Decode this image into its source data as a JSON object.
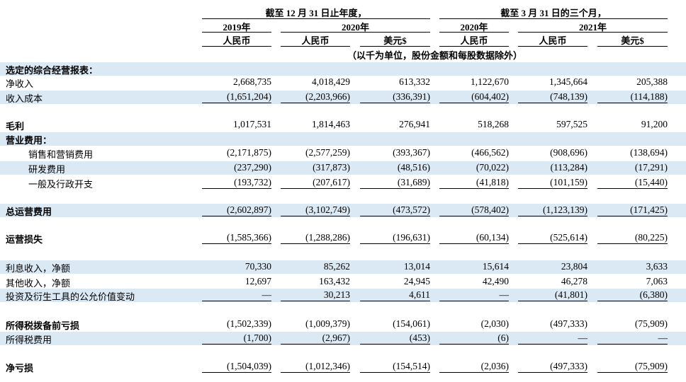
{
  "header": {
    "group1_title": "截至 12 月 31 日止年度，",
    "group2_title": "截至 3 月 31 日的三个月，",
    "years": [
      "2019年",
      "2020年",
      "2020年",
      "2021年"
    ],
    "currencies": [
      "人民币",
      "人民币",
      "美元$",
      "人民币",
      "人民币",
      "美元$"
    ],
    "unit_note": "（以千为单位，股份金额和每股数据除外）"
  },
  "rows": [
    {
      "label": "选定的综合经营报表：",
      "values": [
        "",
        "",
        "",
        "",
        "",
        ""
      ]
    },
    {
      "label": "净收入",
      "values": [
        "2,668,735",
        "4,018,429",
        "613,332",
        "1,122,670",
        "1,345,664",
        "205,388"
      ]
    },
    {
      "label": "收入成本",
      "values": [
        "(1,651,204)",
        "(2,203,966)",
        "(336,391)",
        "(604,402)",
        "(748,139)",
        "(114,188)"
      ]
    },
    {
      "label": "毛利",
      "values": [
        "1,017,531",
        "1,814,463",
        "276,941",
        "518,268",
        "597,525",
        "91,200"
      ]
    },
    {
      "label": "营业费用：",
      "values": [
        "",
        "",
        "",
        "",
        "",
        ""
      ]
    },
    {
      "label": "销售和营销费用",
      "values": [
        "(2,171,875)",
        "(2,577,259)",
        "(393,367)",
        "(466,562)",
        "(908,696)",
        "(138,694)"
      ]
    },
    {
      "label": "研发费用",
      "values": [
        "(237,290)",
        "(317,873)",
        "(48,516)",
        "(70,022)",
        "(113,284)",
        "(17,291)"
      ]
    },
    {
      "label": "一般及行政开支",
      "values": [
        "(193,732)",
        "(207,617)",
        "(31,689)",
        "(41,818)",
        "(101,159)",
        "(15,440)"
      ]
    },
    {
      "label": "总运营费用",
      "values": [
        "(2,602,897)",
        "(3,102,749)",
        "(473,572)",
        "(578,402)",
        "(1,123,139)",
        "(171,425)"
      ]
    },
    {
      "label": "运营损失",
      "values": [
        "(1,585,366)",
        "(1,288,286)",
        "(196,631)",
        "(60,134)",
        "(525,614)",
        "(80,225)"
      ]
    },
    {
      "label": "利息收入，净额",
      "values": [
        "70,330",
        "85,262",
        "13,014",
        "15,614",
        "23,804",
        "3,633"
      ]
    },
    {
      "label": "其他收入，净额",
      "values": [
        "12,697",
        "163,432",
        "24,945",
        "42,490",
        "46,278",
        "7,063"
      ]
    },
    {
      "label": "投资及衍生工具的公允价值变动",
      "values": [
        "—",
        "30,213",
        "4,611",
        "—",
        "(41,801)",
        "(6,380)"
      ]
    },
    {
      "label": "所得税拨备前亏损",
      "values": [
        "(1,502,339)",
        "(1,009,379)",
        "(154,061)",
        "(2,030)",
        "(497,333)",
        "(75,909)"
      ]
    },
    {
      "label": "所得税费用",
      "values": [
        "(1,700)",
        "(2,967)",
        "(453)",
        "(6)",
        "—",
        "—"
      ]
    },
    {
      "label": "净亏损",
      "values": [
        "(1,504,039)",
        "(1,012,346)",
        "(154,514)",
        "(2,036)",
        "(497,333)",
        "(75,909)"
      ]
    }
  ]
}
